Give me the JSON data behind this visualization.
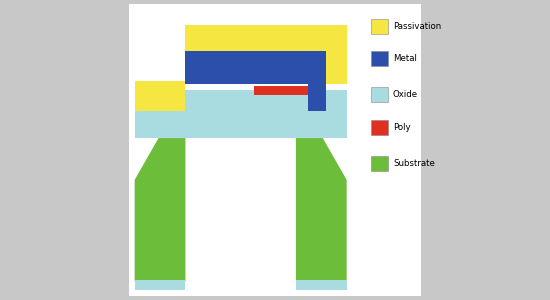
{
  "colors": {
    "passivation": "#F5E642",
    "metal": "#2B4FAA",
    "oxide": "#A8DCE0",
    "poly": "#E03020",
    "substrate": "#6BBD3A",
    "background": "#FFFFFF",
    "fig_bg": "#C8C8C8"
  },
  "legend": [
    {
      "label": "Passivation",
      "color": "#F5E642"
    },
    {
      "label": "Metal",
      "color": "#2B4FAA"
    },
    {
      "label": "Oxide",
      "color": "#A8DCE0"
    },
    {
      "label": "Poly",
      "color": "#E03020"
    },
    {
      "label": "Substrate",
      "color": "#6BBD3A"
    }
  ],
  "figsize": [
    5.5,
    3.0
  ],
  "dpi": 100
}
